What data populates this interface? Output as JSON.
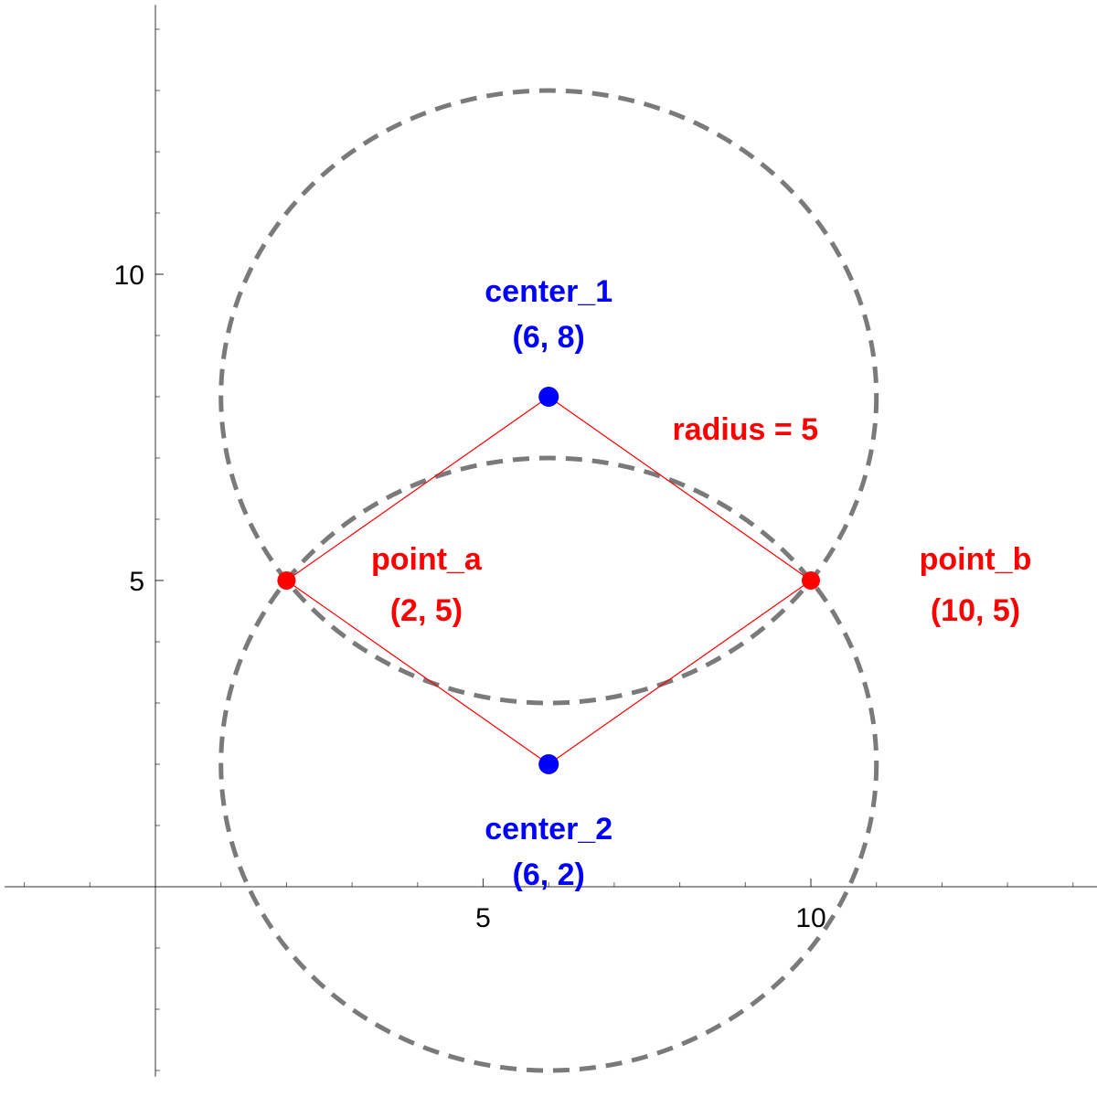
{
  "chart_data": {
    "type": "scatter",
    "title": "",
    "xlabel": "",
    "ylabel": "",
    "xlim": [
      -2.3,
      14.4
    ],
    "ylim": [
      -3.1,
      14.4
    ],
    "x_tick_labels": [
      {
        "value": 5,
        "text": "5"
      },
      {
        "value": 10,
        "text": "10"
      }
    ],
    "y_tick_labels": [
      {
        "value": 5,
        "text": "5"
      },
      {
        "value": 10,
        "text": "10"
      }
    ],
    "x_minor_ticks": [
      -2,
      -1,
      1,
      2,
      3,
      4,
      6,
      7,
      8,
      9,
      11,
      12,
      13,
      14
    ],
    "y_minor_ticks": [
      -3,
      -2,
      -1,
      1,
      2,
      3,
      4,
      6,
      7,
      8,
      9,
      11,
      12,
      13,
      14
    ],
    "circles": [
      {
        "name": "circle_1",
        "cx": 6,
        "cy": 8,
        "r": 5
      },
      {
        "name": "circle_2",
        "cx": 6,
        "cy": 2,
        "r": 5
      }
    ],
    "points": [
      {
        "id": "center_1",
        "x": 6,
        "y": 8,
        "label": "center_1",
        "coords": "(6, 8)",
        "color": "#0000ff"
      },
      {
        "id": "center_2",
        "x": 6,
        "y": 2,
        "label": "center_2",
        "coords": "(6, 2)",
        "color": "#0000ff"
      },
      {
        "id": "point_a",
        "x": 2,
        "y": 5,
        "label": "point_a",
        "coords": "(2, 5)",
        "color": "#ff0000"
      },
      {
        "id": "point_b",
        "x": 10,
        "y": 5,
        "label": "point_b",
        "coords": "(10, 5)",
        "color": "#ff0000"
      }
    ],
    "segments": [
      {
        "from": [
          2,
          5
        ],
        "to": [
          6,
          8
        ]
      },
      {
        "from": [
          6,
          8
        ],
        "to": [
          10,
          5
        ]
      },
      {
        "from": [
          2,
          5
        ],
        "to": [
          6,
          2
        ]
      },
      {
        "from": [
          6,
          2
        ],
        "to": [
          10,
          5
        ]
      }
    ],
    "annotations": [
      {
        "text": "radius = 5",
        "x": 9,
        "y": 7.3,
        "color": "#ff0000"
      }
    ],
    "colors": {
      "circle": "#7a7a7a",
      "segment": "#ff0000",
      "axis": "#000000"
    }
  }
}
